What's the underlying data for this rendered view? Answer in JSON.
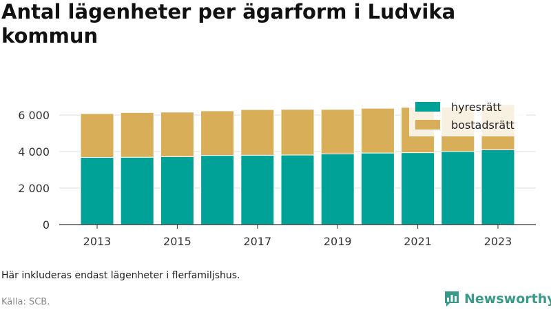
{
  "chart_data": {
    "type": "bar",
    "stacked": true,
    "title": "Antal lägenheter per ägarform i Ludvika kommun",
    "categories": [
      "2013",
      "2014",
      "2015",
      "2016",
      "2017",
      "2018",
      "2019",
      "2020",
      "2021",
      "2022",
      "2023"
    ],
    "x_tick_labels": [
      "2013",
      "2015",
      "2017",
      "2019",
      "2021",
      "2023"
    ],
    "series": [
      {
        "name": "hyresrätt",
        "color": "#00a297",
        "values": [
          3680,
          3690,
          3720,
          3790,
          3800,
          3810,
          3870,
          3920,
          3940,
          4000,
          4100
        ]
      },
      {
        "name": "bostadsrätt",
        "color": "#d9ae58",
        "values": [
          2400,
          2450,
          2440,
          2440,
          2500,
          2500,
          2440,
          2450,
          2480,
          2430,
          2480
        ]
      }
    ],
    "y_ticks": [
      0,
      2000,
      4000,
      6000
    ],
    "y_tick_labels": [
      "0",
      "2 000",
      "4 000",
      "6 000"
    ],
    "ylim": [
      0,
      7000
    ],
    "grid": true,
    "legend_position": "top-right"
  },
  "footer": {
    "note": "Här inkluderas endast lägenheter i flerfamiljshus.",
    "source": "Källa: SCB.",
    "brand": "Newsworthy",
    "brand_icon": "newsworthy-logo-icon"
  }
}
